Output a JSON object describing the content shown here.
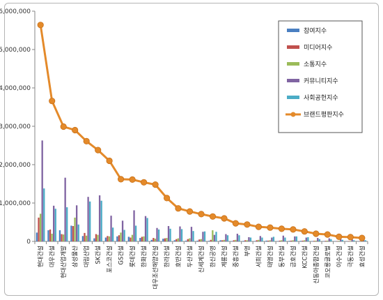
{
  "chart_data": {
    "type": "bar",
    "categories": [
      "현대건설",
      "대우건설",
      "현대산업개발",
      "삼성물산",
      "대림산업",
      "SK건설",
      "포스코건설",
      "GS건설",
      "롯데건설",
      "한화건설",
      "대우조선해양건설",
      "한라건설",
      "호반건설",
      "두산건설",
      "신세계건설",
      "한신공영",
      "계룡건설",
      "중흥건설",
      "부영",
      "서희건설",
      "태영건설",
      "동부건설",
      "금호건설",
      "KCC건설",
      "신동아종합건설",
      "코오롱글로벌",
      "이수건설",
      "극동건설",
      "효성건설"
    ],
    "series": [
      {
        "name": "참여지수",
        "color": "#4a7fc1",
        "values": [
          230000,
          290000,
          290000,
          410000,
          140000,
          80000,
          100000,
          130000,
          120000,
          90000,
          40000,
          70000,
          30000,
          20000,
          20000,
          15000,
          30000,
          10000,
          15000,
          10000,
          20000,
          10000,
          15000,
          15000,
          10000,
          10000,
          8000,
          5000,
          5000
        ]
      },
      {
        "name": "미디어지수",
        "color": "#c0504d",
        "values": [
          620000,
          310000,
          190000,
          400000,
          220000,
          190000,
          140000,
          160000,
          100000,
          120000,
          90000,
          80000,
          60000,
          60000,
          50000,
          40000,
          30000,
          30000,
          30000,
          30000,
          20000,
          20000,
          20000,
          20000,
          15000,
          15000,
          10000,
          10000,
          10000
        ]
      },
      {
        "name": "소통지수",
        "color": "#9bbb59",
        "values": [
          720000,
          200000,
          180000,
          620000,
          150000,
          170000,
          130000,
          230000,
          170000,
          130000,
          70000,
          90000,
          80000,
          80000,
          60000,
          290000,
          40000,
          40000,
          30000,
          40000,
          30000,
          30000,
          30000,
          30000,
          20000,
          20000,
          15000,
          10000,
          10000
        ]
      },
      {
        "name": "커뮤니티지수",
        "color": "#8064a2",
        "values": [
          2630000,
          930000,
          1660000,
          940000,
          1160000,
          1200000,
          670000,
          540000,
          810000,
          660000,
          350000,
          400000,
          390000,
          380000,
          250000,
          170000,
          190000,
          200000,
          110000,
          140000,
          100000,
          150000,
          130000,
          100000,
          90000,
          80000,
          60000,
          50000,
          50000
        ]
      },
      {
        "name": "사회공헌지수",
        "color": "#4bacc6",
        "values": [
          1380000,
          850000,
          890000,
          440000,
          1040000,
          1060000,
          360000,
          300000,
          410000,
          610000,
          310000,
          330000,
          320000,
          270000,
          260000,
          250000,
          160000,
          160000,
          100000,
          100000,
          120000,
          100000,
          130000,
          110000,
          60000,
          60000,
          40000,
          30000,
          30000
        ]
      }
    ],
    "line": {
      "name": "브랜드평판지수",
      "color": "#e48a2a",
      "values": [
        5640000,
        3660000,
        2990000,
        2900000,
        2610000,
        2380000,
        2100000,
        1620000,
        1610000,
        1540000,
        1480000,
        1130000,
        860000,
        780000,
        710000,
        650000,
        600000,
        470000,
        440000,
        380000,
        360000,
        330000,
        310000,
        260000,
        200000,
        180000,
        120000,
        110000,
        90000
      ]
    },
    "ylim": [
      0,
      6000000
    ],
    "yticks": [
      "0",
      "1,000,000",
      "2,000,000",
      "3,000,000",
      "4,000,000",
      "5,000,000",
      "6,000,000"
    ],
    "grid": false,
    "legend": "top-right",
    "title": "",
    "xlabel": "",
    "ylabel": ""
  }
}
